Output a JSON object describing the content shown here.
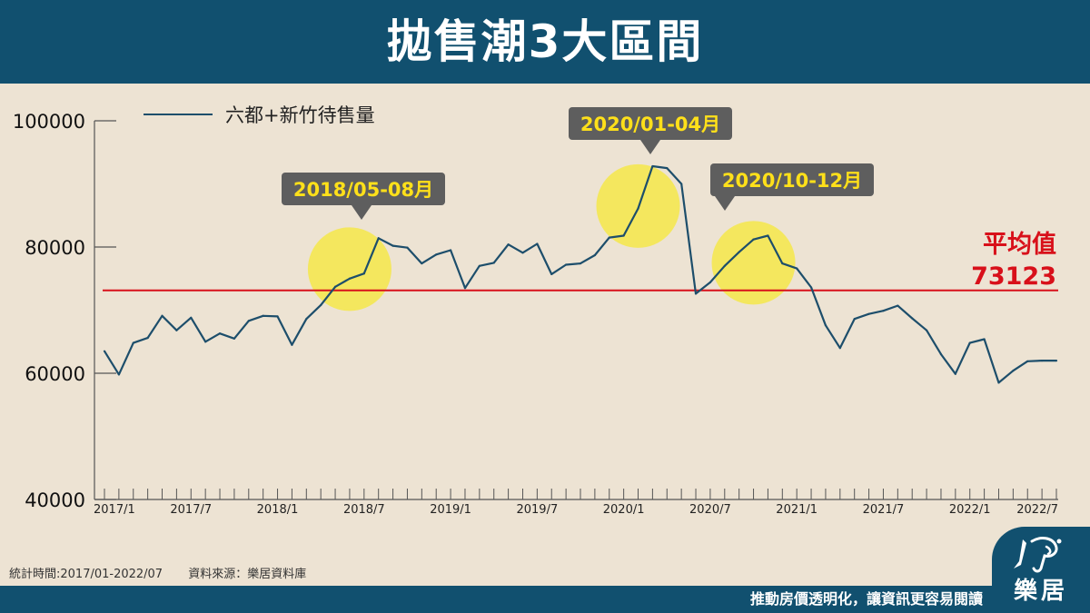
{
  "header": {
    "title": "拋售潮3大區間"
  },
  "chart_data": {
    "type": "line",
    "series": [
      {
        "name": "六都+新竹待售量",
        "color": "#1d4e6b",
        "x": [
          "2017/01",
          "2017/02",
          "2017/03",
          "2017/04",
          "2017/05",
          "2017/06",
          "2017/07",
          "2017/08",
          "2017/09",
          "2017/10",
          "2017/11",
          "2017/12",
          "2018/01",
          "2018/02",
          "2018/03",
          "2018/04",
          "2018/05",
          "2018/06",
          "2018/07",
          "2018/08",
          "2018/09",
          "2018/10",
          "2018/11",
          "2018/12",
          "2019/01",
          "2019/02",
          "2019/03",
          "2019/04",
          "2019/05",
          "2019/06",
          "2019/07",
          "2019/08",
          "2019/09",
          "2019/10",
          "2019/11",
          "2019/12",
          "2020/01",
          "2020/02",
          "2020/03",
          "2020/04",
          "2020/05",
          "2020/06",
          "2020/07",
          "2020/08",
          "2020/09",
          "2020/10",
          "2020/11",
          "2020/12",
          "2021/01",
          "2021/02",
          "2021/03",
          "2021/04",
          "2021/05",
          "2021/06",
          "2021/07",
          "2021/08",
          "2021/09",
          "2021/10",
          "2021/11",
          "2021/12",
          "2022/01",
          "2022/02",
          "2022/03",
          "2022/04",
          "2022/05",
          "2022/06",
          "2022/07"
        ],
        "values": [
          63500,
          59800,
          64800,
          65600,
          69100,
          66800,
          68800,
          65000,
          66300,
          65500,
          68300,
          69100,
          69000,
          64500,
          68600,
          70800,
          73700,
          75000,
          75800,
          81400,
          80200,
          79900,
          77400,
          78800,
          79500,
          73500,
          77000,
          77500,
          80400,
          79100,
          80500,
          75700,
          77200,
          77400,
          78700,
          81500,
          81800,
          86100,
          92800,
          92500,
          90000,
          72600,
          74400,
          77000,
          79200,
          81200,
          81800,
          77400,
          76600,
          73600,
          67600,
          64000,
          68600,
          69400,
          69900,
          70700,
          68700,
          66800,
          63000,
          59900,
          64800,
          65400,
          58500,
          60400,
          61900,
          62000,
          62000
        ]
      }
    ],
    "x_tick_labels": [
      "2017/1",
      "2017/7",
      "2018/1",
      "2018/7",
      "2019/1",
      "2019/7",
      "2020/1",
      "2020/7",
      "2021/1",
      "2021/7",
      "2022/1",
      "2022/7"
    ],
    "y_ticks": [
      "40000",
      "60000",
      "80000",
      "100000"
    ],
    "ylim": [
      40000,
      100000
    ],
    "reference_line": {
      "label": "平均值",
      "value": 73123,
      "value_text": "73123",
      "color": "#d8101a"
    },
    "highlights": [
      {
        "label": "2018/05-08月",
        "center_month": "2018/06",
        "center_value": 76500
      },
      {
        "label": "2020/01-04月",
        "center_month": "2020/02",
        "center_value": 86500
      },
      {
        "label": "2020/10-12月",
        "center_month": "2020/10",
        "center_value": 77500
      }
    ],
    "highlight_color": "#f5e849",
    "callout_color": "#5e5e5e",
    "callout_text_color": "#ffe01a",
    "legend_position": "top-left",
    "grid": false
  },
  "footer": {
    "stat_period": "統計時間:2017/01-2022/07",
    "source": "資料來源：樂居資料庫",
    "slogan": "推動房價透明化，讓資訊更容易閱讀"
  },
  "brand": {
    "name": "樂居",
    "color": "#11506f"
  }
}
